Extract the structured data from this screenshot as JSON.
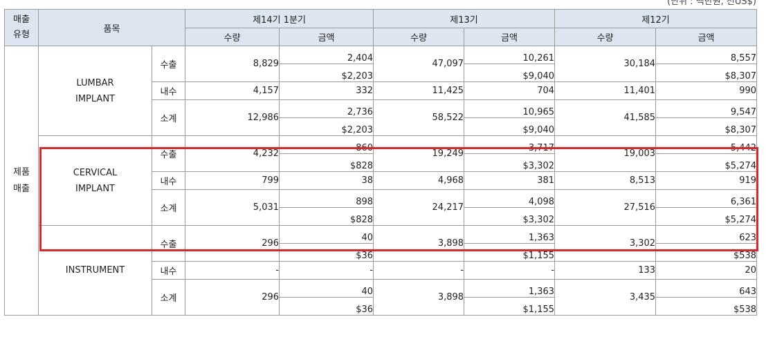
{
  "unit_note": "(단위 : 백만원, 천US$)",
  "header": {
    "sales_type": "매출\n유형",
    "item": "품목",
    "periods": [
      "제14기 1분기",
      "제13기",
      "제12기"
    ],
    "qty": "수량",
    "amount": "금액"
  },
  "sales_type_value": "제품\n매출",
  "groups": [
    {
      "name": "LUMBAR\nIMPLANT",
      "rows": [
        {
          "label": "수출",
          "p14": {
            "qty": "8,829",
            "amt": "2,404",
            "usd": "$2,203"
          },
          "p13": {
            "qty": "47,097",
            "amt": "10,261",
            "usd": "$9,040"
          },
          "p12": {
            "qty": "30,184",
            "amt": "8,557",
            "usd": "$8,307"
          }
        },
        {
          "label": "내수",
          "p14": {
            "qty": "4,157",
            "amt": "332"
          },
          "p13": {
            "qty": "11,425",
            "amt": "704"
          },
          "p12": {
            "qty": "11,401",
            "amt": "990"
          }
        },
        {
          "label": "소계",
          "p14": {
            "qty": "12,986",
            "amt": "2,736",
            "usd": "$2,203"
          },
          "p13": {
            "qty": "58,522",
            "amt": "10,965",
            "usd": "$9,040"
          },
          "p12": {
            "qty": "41,585",
            "amt": "9,547",
            "usd": "$8,307"
          }
        }
      ]
    },
    {
      "name": "CERVICAL\nIMPLANT",
      "rows": [
        {
          "label": "수출",
          "p14": {
            "qty": "4,232",
            "amt": "860",
            "usd": "$828"
          },
          "p13": {
            "qty": "19,249",
            "amt": "3,717",
            "usd": "$3,302"
          },
          "p12": {
            "qty": "19,003",
            "amt": "5,442",
            "usd": "$5,274"
          }
        },
        {
          "label": "내수",
          "p14": {
            "qty": "799",
            "amt": "38"
          },
          "p13": {
            "qty": "4,968",
            "amt": "381"
          },
          "p12": {
            "qty": "8,513",
            "amt": "919"
          }
        },
        {
          "label": "소계",
          "p14": {
            "qty": "5,031",
            "amt": "898",
            "usd": "$828"
          },
          "p13": {
            "qty": "24,217",
            "amt": "4,098",
            "usd": "$3,302"
          },
          "p12": {
            "qty": "27,516",
            "amt": "6,361",
            "usd": "$5,274"
          }
        }
      ]
    },
    {
      "name": "INSTRUMENT",
      "rows": [
        {
          "label": "수출",
          "p14": {
            "qty": "296",
            "amt": "40",
            "usd": "$36"
          },
          "p13": {
            "qty": "3,898",
            "amt": "1,363",
            "usd": "$1,155"
          },
          "p12": {
            "qty": "3,302",
            "amt": "623",
            "usd": "$538"
          }
        },
        {
          "label": "내수",
          "p14": {
            "qty": "-",
            "amt": "-"
          },
          "p13": {
            "qty": "-",
            "amt": "-"
          },
          "p12": {
            "qty": "133",
            "amt": "20"
          }
        },
        {
          "label": "소계",
          "p14": {
            "qty": "296",
            "amt": "40",
            "usd": "$36"
          },
          "p13": {
            "qty": "3,898",
            "amt": "1,363",
            "usd": "$1,155"
          },
          "p12": {
            "qty": "3,435",
            "amt": "643",
            "usd": "$538"
          }
        }
      ]
    }
  ],
  "colors": {
    "header_bg": "#dde5f1",
    "highlight": "#e0242a",
    "border": "#9a9a9a"
  }
}
